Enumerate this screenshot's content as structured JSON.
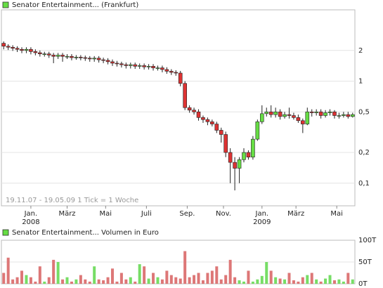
{
  "chart_data": [
    {
      "type": "candlestick",
      "title": "Senator Entertainment... (Frankfurt)",
      "note": "19.11.07 - 19.05.09   1 Tick = 1 Woche",
      "log_scale": true,
      "grid": true,
      "up_color": "#66dd44",
      "down_color": "#dd3333",
      "ylim": [
        0.06,
        5
      ],
      "yticks": [
        {
          "value": 0.1,
          "label": "0,1"
        },
        {
          "value": 0.2,
          "label": "0,2"
        },
        {
          "value": 0.5,
          "label": "0,5"
        },
        1,
        2
      ],
      "xlim": [
        -0.5,
        77.5
      ],
      "xticks": [
        {
          "value": 6,
          "label": "Jan."
        },
        {
          "value": 14,
          "label": "März"
        },
        {
          "value": 22.5,
          "label": "Mai"
        },
        {
          "value": 31.5,
          "label": "Juli"
        },
        {
          "value": 40.5,
          "label": "Sep."
        },
        {
          "value": 48.5,
          "label": "Nov."
        },
        {
          "value": 57,
          "label": "Jan."
        },
        {
          "value": 64.5,
          "label": "März"
        },
        {
          "value": 73.5,
          "label": "Mai"
        }
      ],
      "year_labels": [
        {
          "value": 6,
          "label": "2008"
        },
        {
          "value": 57,
          "label": "2009"
        }
      ],
      "open": [
        2.35,
        2.2,
        2.15,
        2.1,
        2.05,
        2.0,
        2.05,
        1.95,
        1.9,
        1.85,
        1.85,
        1.8,
        1.75,
        1.8,
        1.75,
        1.75,
        1.7,
        1.72,
        1.7,
        1.68,
        1.65,
        1.68,
        1.62,
        1.6,
        1.55,
        1.5,
        1.48,
        1.45,
        1.42,
        1.45,
        1.4,
        1.42,
        1.38,
        1.4,
        1.35,
        1.35,
        1.3,
        1.25,
        1.22,
        1.2,
        0.95,
        0.55,
        0.52,
        0.5,
        0.44,
        0.42,
        0.4,
        0.38,
        0.33,
        0.3,
        0.2,
        0.16,
        0.14,
        0.17,
        0.2,
        0.18,
        0.27,
        0.4,
        0.48,
        0.5,
        0.47,
        0.5,
        0.45,
        0.47,
        0.46,
        0.44,
        0.41,
        0.38,
        0.5,
        0.49,
        0.5,
        0.46,
        0.49,
        0.5,
        0.46,
        0.46,
        0.47,
        0.45
      ],
      "high": [
        2.45,
        2.3,
        2.25,
        2.2,
        2.15,
        2.15,
        2.15,
        2.05,
        2.0,
        1.94,
        1.94,
        1.89,
        1.89,
        1.89,
        1.84,
        1.84,
        1.8,
        1.8,
        1.78,
        1.76,
        1.76,
        1.76,
        1.7,
        1.68,
        1.63,
        1.58,
        1.55,
        1.52,
        1.52,
        1.52,
        1.49,
        1.49,
        1.47,
        1.47,
        1.42,
        1.42,
        1.37,
        1.31,
        1.28,
        1.26,
        1.0,
        0.58,
        0.55,
        0.53,
        0.46,
        0.44,
        0.42,
        0.4,
        0.35,
        0.32,
        0.22,
        0.18,
        0.18,
        0.22,
        0.21,
        0.29,
        0.42,
        0.58,
        0.55,
        0.58,
        0.55,
        0.53,
        0.5,
        0.55,
        0.49,
        0.47,
        0.43,
        0.55,
        0.53,
        0.53,
        0.53,
        0.52,
        0.53,
        0.52,
        0.49,
        0.5,
        0.5,
        0.49
      ],
      "low": [
        2.05,
        2.02,
        1.98,
        1.93,
        1.88,
        1.88,
        1.83,
        1.79,
        1.74,
        1.74,
        1.69,
        1.5,
        1.65,
        1.55,
        1.65,
        1.6,
        1.62,
        1.6,
        1.58,
        1.55,
        1.55,
        1.52,
        1.5,
        1.46,
        1.41,
        1.39,
        1.36,
        1.33,
        1.33,
        1.32,
        1.32,
        1.3,
        1.3,
        1.27,
        1.27,
        1.22,
        1.18,
        1.15,
        1.13,
        0.89,
        0.52,
        0.49,
        0.47,
        0.41,
        0.39,
        0.37,
        0.36,
        0.31,
        0.25,
        0.18,
        0.1,
        0.085,
        0.1,
        0.16,
        0.17,
        0.17,
        0.26,
        0.38,
        0.45,
        0.44,
        0.44,
        0.42,
        0.43,
        0.43,
        0.42,
        0.39,
        0.31,
        0.37,
        0.45,
        0.46,
        0.43,
        0.44,
        0.46,
        0.43,
        0.43,
        0.44,
        0.43,
        0.44
      ],
      "close": [
        2.2,
        2.15,
        2.1,
        2.05,
        2.0,
        2.05,
        1.95,
        1.9,
        1.85,
        1.85,
        1.8,
        1.75,
        1.8,
        1.75,
        1.75,
        1.7,
        1.72,
        1.7,
        1.68,
        1.65,
        1.68,
        1.62,
        1.6,
        1.55,
        1.5,
        1.48,
        1.45,
        1.42,
        1.45,
        1.4,
        1.42,
        1.38,
        1.4,
        1.35,
        1.35,
        1.3,
        1.25,
        1.22,
        1.2,
        0.95,
        0.55,
        0.52,
        0.5,
        0.44,
        0.42,
        0.4,
        0.38,
        0.33,
        0.3,
        0.2,
        0.16,
        0.14,
        0.17,
        0.2,
        0.18,
        0.27,
        0.4,
        0.48,
        0.5,
        0.47,
        0.5,
        0.45,
        0.47,
        0.46,
        0.44,
        0.41,
        0.38,
        0.5,
        0.49,
        0.5,
        0.46,
        0.49,
        0.5,
        0.46,
        0.46,
        0.47,
        0.45,
        0.47
      ]
    },
    {
      "type": "bar",
      "title": "Senator Entertainment... Volumen in Euro",
      "grid": true,
      "up_color": "#77dd66",
      "down_color": "#dd7777",
      "ylim": [
        0,
        100
      ],
      "yticks": [
        {
          "value": 0,
          "label": "0T"
        },
        {
          "value": 50,
          "label": "50T"
        },
        {
          "value": 100,
          "label": "100T"
        }
      ],
      "xlim": [
        -0.5,
        77.5
      ],
      "values": [
        25,
        60,
        10,
        15,
        30,
        20,
        15,
        5,
        40,
        5,
        15,
        55,
        50,
        10,
        15,
        5,
        10,
        20,
        10,
        5,
        40,
        10,
        8,
        15,
        35,
        5,
        25,
        10,
        15,
        5,
        45,
        40,
        12,
        25,
        15,
        10,
        30,
        20,
        15,
        12,
        75,
        15,
        20,
        25,
        8,
        25,
        30,
        40,
        10,
        20,
        55,
        15,
        8,
        5,
        30,
        5,
        10,
        18,
        50,
        30,
        15,
        12,
        10,
        25,
        8,
        5,
        15,
        20,
        25,
        10,
        5,
        12,
        20,
        8,
        10,
        5,
        25,
        10
      ]
    }
  ]
}
